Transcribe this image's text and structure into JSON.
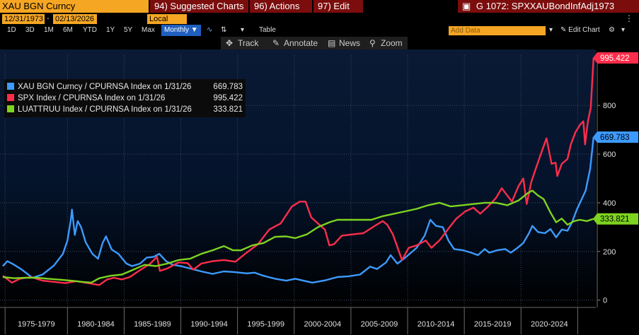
{
  "toolbar": {
    "ticker": "XAU BGN Curncy",
    "suggested": "94) Suggested Charts",
    "actions": "96) Actions",
    "edit": "97) Edit",
    "chart_id": "G 1072: SPXXAUBondInfAdj1973",
    "start_date": "12/31/1973",
    "end_date": "02/13/2026",
    "currency": "Local CCY",
    "periods": [
      "1D",
      "3D",
      "1M",
      "6M",
      "YTD",
      "1Y",
      "5Y",
      "Max"
    ],
    "frequency": "Monthly",
    "table": "Table",
    "add_data_placeholder": "Add Data",
    "edit_chart": "Edit Chart",
    "track": "Track",
    "annotate": "Annotate",
    "news": "News",
    "zoom": "Zoom"
  },
  "legend": {
    "items": [
      {
        "label": "XAU BGN Curncy / CPURNSA Index on 1/31/26",
        "value": "669.783",
        "color": "#3d9bff"
      },
      {
        "label": "SPX Index / CPURNSA Index on 1/31/26",
        "value": "995.422",
        "color": "#ff2d4b"
      },
      {
        "label": "LUATTRUU Index / CPURNSA Index on 1/31/26",
        "value": "333.821",
        "color": "#7ed320"
      }
    ]
  },
  "chart_data": {
    "type": "line",
    "x_labels": [
      "1975-1979",
      "1980-1984",
      "1985-1989",
      "1990-1994",
      "1995-1999",
      "2000-2004",
      "2005-2009",
      "2010-2014",
      "2015-2019",
      "2020-2024"
    ],
    "y_ticks": [
      0,
      200,
      400,
      600,
      800
    ],
    "ylim": [
      -30,
      1030
    ],
    "xlim": [
      1974.0,
      2026.3
    ],
    "grid": true,
    "series": [
      {
        "name": "XAU BGN Curncy / CPURNSA Index on 1/31/26",
        "color": "#3d9bff",
        "end_label": "669.783",
        "points": [
          [
            1974.0,
            140
          ],
          [
            1974.4,
            160
          ],
          [
            1974.9,
            148
          ],
          [
            1975.6,
            128
          ],
          [
            1976.6,
            92
          ],
          [
            1977.5,
            105
          ],
          [
            1978.5,
            142
          ],
          [
            1979.3,
            190
          ],
          [
            1979.7,
            245
          ],
          [
            1980.0,
            330
          ],
          [
            1980.1,
            372
          ],
          [
            1980.35,
            268
          ],
          [
            1980.6,
            325
          ],
          [
            1980.9,
            300
          ],
          [
            1981.3,
            238
          ],
          [
            1981.9,
            190
          ],
          [
            1982.4,
            170
          ],
          [
            1982.8,
            235
          ],
          [
            1983.1,
            262
          ],
          [
            1983.6,
            208
          ],
          [
            1984.2,
            190
          ],
          [
            1984.9,
            150
          ],
          [
            1985.4,
            140
          ],
          [
            1986.1,
            150
          ],
          [
            1986.7,
            175
          ],
          [
            1987.3,
            178
          ],
          [
            1987.8,
            190
          ],
          [
            1988.4,
            160
          ],
          [
            1989.0,
            145
          ],
          [
            1989.7,
            140
          ],
          [
            1990.5,
            130
          ],
          [
            1991.5,
            118
          ],
          [
            1992.5,
            108
          ],
          [
            1993.5,
            118
          ],
          [
            1994.5,
            115
          ],
          [
            1995.5,
            110
          ],
          [
            1996.2,
            113
          ],
          [
            1997.0,
            100
          ],
          [
            1998.0,
            88
          ],
          [
            1999.0,
            80
          ],
          [
            1999.8,
            88
          ],
          [
            2000.5,
            80
          ],
          [
            2001.3,
            72
          ],
          [
            2002.5,
            82
          ],
          [
            2003.5,
            95
          ],
          [
            2004.5,
            98
          ],
          [
            2005.5,
            105
          ],
          [
            2006.4,
            138
          ],
          [
            2007.0,
            128
          ],
          [
            2007.8,
            155
          ],
          [
            2008.2,
            185
          ],
          [
            2008.8,
            150
          ],
          [
            2009.5,
            175
          ],
          [
            2010.5,
            215
          ],
          [
            2011.2,
            265
          ],
          [
            2011.7,
            330
          ],
          [
            2012.2,
            305
          ],
          [
            2012.8,
            300
          ],
          [
            2013.3,
            245
          ],
          [
            2013.8,
            210
          ],
          [
            2014.6,
            205
          ],
          [
            2015.3,
            195
          ],
          [
            2015.9,
            185
          ],
          [
            2016.5,
            210
          ],
          [
            2016.9,
            195
          ],
          [
            2017.6,
            205
          ],
          [
            2018.3,
            210
          ],
          [
            2018.8,
            195
          ],
          [
            2019.4,
            215
          ],
          [
            2019.9,
            235
          ],
          [
            2020.4,
            275
          ],
          [
            2020.7,
            305
          ],
          [
            2021.2,
            280
          ],
          [
            2021.8,
            275
          ],
          [
            2022.3,
            292
          ],
          [
            2022.8,
            258
          ],
          [
            2023.3,
            290
          ],
          [
            2023.8,
            285
          ],
          [
            2024.2,
            320
          ],
          [
            2024.6,
            370
          ],
          [
            2025.0,
            410
          ],
          [
            2025.4,
            450
          ],
          [
            2025.8,
            540
          ],
          [
            2026.1,
            669.8
          ]
        ]
      },
      {
        "name": "SPX Index / CPURNSA Index on 1/31/26",
        "color": "#ff2d4b",
        "end_label": "995.422",
        "points": [
          [
            1974.0,
            100
          ],
          [
            1974.8,
            72
          ],
          [
            1975.5,
            88
          ],
          [
            1976.5,
            95
          ],
          [
            1977.5,
            80
          ],
          [
            1978.5,
            75
          ],
          [
            1979.5,
            70
          ],
          [
            1980.5,
            78
          ],
          [
            1981.5,
            70
          ],
          [
            1982.5,
            62
          ],
          [
            1983.2,
            85
          ],
          [
            1983.8,
            92
          ],
          [
            1984.5,
            85
          ],
          [
            1985.2,
            95
          ],
          [
            1986.0,
            120
          ],
          [
            1987.0,
            150
          ],
          [
            1987.6,
            178
          ],
          [
            1987.85,
            120
          ],
          [
            1988.5,
            130
          ],
          [
            1989.5,
            155
          ],
          [
            1990.3,
            152
          ],
          [
            1990.8,
            125
          ],
          [
            1991.5,
            150
          ],
          [
            1992.5,
            160
          ],
          [
            1993.5,
            165
          ],
          [
            1994.5,
            158
          ],
          [
            1995.5,
            195
          ],
          [
            1996.5,
            230
          ],
          [
            1997.5,
            290
          ],
          [
            1998.5,
            315
          ],
          [
            1999.5,
            385
          ],
          [
            2000.2,
            405
          ],
          [
            2000.7,
            405
          ],
          [
            2001.2,
            340
          ],
          [
            2001.8,
            315
          ],
          [
            2002.4,
            290
          ],
          [
            2002.8,
            225
          ],
          [
            2003.2,
            230
          ],
          [
            2003.9,
            265
          ],
          [
            2004.8,
            270
          ],
          [
            2005.8,
            275
          ],
          [
            2006.8,
            305
          ],
          [
            2007.5,
            325
          ],
          [
            2007.9,
            310
          ],
          [
            2008.4,
            270
          ],
          [
            2008.9,
            205
          ],
          [
            2009.2,
            165
          ],
          [
            2009.8,
            215
          ],
          [
            2010.5,
            225
          ],
          [
            2011.3,
            245
          ],
          [
            2011.8,
            215
          ],
          [
            2012.5,
            245
          ],
          [
            2013.4,
            300
          ],
          [
            2014.0,
            335
          ],
          [
            2014.8,
            365
          ],
          [
            2015.5,
            380
          ],
          [
            2016.1,
            355
          ],
          [
            2016.8,
            385
          ],
          [
            2017.5,
            420
          ],
          [
            2018.0,
            460
          ],
          [
            2018.9,
            405
          ],
          [
            2019.5,
            470
          ],
          [
            2019.9,
            500
          ],
          [
            2020.2,
            395
          ],
          [
            2020.6,
            485
          ],
          [
            2021.0,
            540
          ],
          [
            2021.6,
            620
          ],
          [
            2021.95,
            665
          ],
          [
            2022.4,
            560
          ],
          [
            2022.75,
            565
          ],
          [
            2022.9,
            510
          ],
          [
            2023.3,
            560
          ],
          [
            2023.8,
            580
          ],
          [
            2024.1,
            640
          ],
          [
            2024.5,
            690
          ],
          [
            2024.9,
            720
          ],
          [
            2025.2,
            735
          ],
          [
            2025.35,
            640
          ],
          [
            2025.6,
            735
          ],
          [
            2025.85,
            790
          ],
          [
            2026.1,
            995.4
          ]
        ]
      },
      {
        "name": "LUATTRUU Index / CPURNSA Index on 1/31/26",
        "color": "#7ed320",
        "end_label": "333.821",
        "points": [
          [
            1974.0,
            95
          ],
          [
            1975.0,
            90
          ],
          [
            1976.0,
            92
          ],
          [
            1977.0,
            92
          ],
          [
            1978.0,
            88
          ],
          [
            1979.0,
            84
          ],
          [
            1980.0,
            80
          ],
          [
            1981.0,
            75
          ],
          [
            1981.8,
            72
          ],
          [
            1982.5,
            90
          ],
          [
            1983.5,
            100
          ],
          [
            1984.5,
            105
          ],
          [
            1985.5,
            125
          ],
          [
            1986.5,
            145
          ],
          [
            1987.5,
            140
          ],
          [
            1988.5,
            150
          ],
          [
            1989.5,
            165
          ],
          [
            1990.5,
            170
          ],
          [
            1991.5,
            190
          ],
          [
            1992.5,
            205
          ],
          [
            1993.5,
            222
          ],
          [
            1994.3,
            205
          ],
          [
            1995.0,
            205
          ],
          [
            1996.0,
            225
          ],
          [
            1997.0,
            235
          ],
          [
            1998.0,
            260
          ],
          [
            1999.0,
            262
          ],
          [
            1999.8,
            255
          ],
          [
            2000.8,
            270
          ],
          [
            2001.8,
            300
          ],
          [
            2002.8,
            320
          ],
          [
            2003.5,
            330
          ],
          [
            2004.5,
            330
          ],
          [
            2005.5,
            330
          ],
          [
            2006.5,
            330
          ],
          [
            2007.5,
            345
          ],
          [
            2008.5,
            355
          ],
          [
            2009.5,
            365
          ],
          [
            2010.5,
            375
          ],
          [
            2011.5,
            390
          ],
          [
            2012.5,
            400
          ],
          [
            2013.5,
            385
          ],
          [
            2014.5,
            390
          ],
          [
            2015.5,
            395
          ],
          [
            2016.5,
            400
          ],
          [
            2017.5,
            400
          ],
          [
            2018.5,
            390
          ],
          [
            2019.5,
            410
          ],
          [
            2020.3,
            440
          ],
          [
            2020.7,
            450
          ],
          [
            2021.2,
            430
          ],
          [
            2021.7,
            415
          ],
          [
            2022.3,
            360
          ],
          [
            2022.8,
            320
          ],
          [
            2023.3,
            335
          ],
          [
            2023.8,
            310
          ],
          [
            2024.4,
            325
          ],
          [
            2024.9,
            330
          ],
          [
            2025.5,
            325
          ],
          [
            2026.1,
            333.8
          ]
        ]
      }
    ]
  }
}
